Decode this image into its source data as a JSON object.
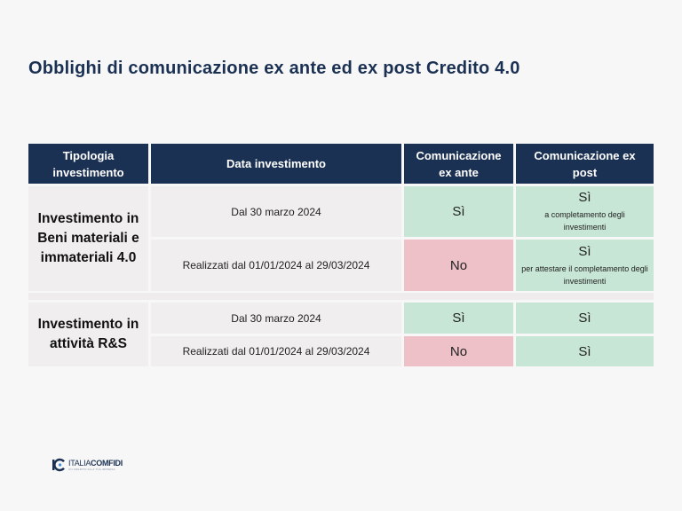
{
  "title": "Obblighi di comunicazione ex ante ed ex post Credito 4.0",
  "headers": {
    "type": "Tipologia investimento",
    "date": "Data investimento",
    "ex_ante": "Comunicazione ex ante",
    "ex_post": "Comunicazione ex post"
  },
  "groups": [
    {
      "type": "Investimento in Beni materiali e immateriali 4.0",
      "rows": [
        {
          "date": "Dal 30 marzo 2024",
          "ex_ante": "Sì",
          "ex_post": "Sì",
          "ex_post_note": "a completamento degli investimenti"
        },
        {
          "date": "Realizzati dal 01/01/2024 al 29/03/2024",
          "ex_ante": "No",
          "ex_post": "Sì",
          "ex_post_note": "per attestare il completamento degli investimenti"
        }
      ]
    },
    {
      "type": "Investimento in attività R&S",
      "rows": [
        {
          "date": "Dal 30 marzo 2024",
          "ex_ante": "Sì",
          "ex_post": "Sì"
        },
        {
          "date": "Realizzati dal 01/01/2024 al 29/03/2024",
          "ex_ante": "No",
          "ex_post": "Sì"
        }
      ]
    }
  ],
  "logo": {
    "brand_a": "ITALIA",
    "brand_b": "COMFIDI",
    "tagline": "UN CREDITO ALLA TUA IMPRESA"
  },
  "colors": {
    "header": "#1b3153",
    "yes": "#c8e6d6",
    "no": "#eec0c7",
    "neutral": "#f0eeef"
  }
}
